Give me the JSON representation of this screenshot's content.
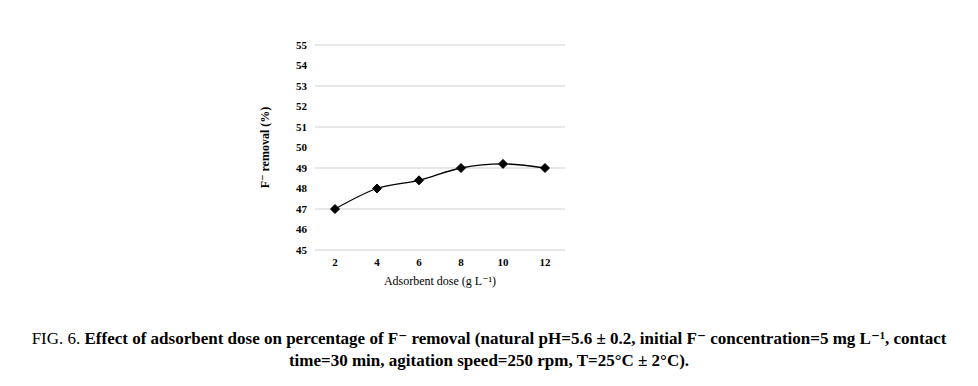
{
  "chart_data": {
    "type": "line",
    "title": "FIG. 6.",
    "subtitle": "Effect of adsorbent dose on percentage of F⁻ removal (natural pH=5.6 ± 0.2, initial F⁻ concentration=5 mg L⁻¹, contact time=30 min, agitation speed=250 rpm, T=25°C ± 2°C).",
    "xlabel": "Adsorbent dose (g L⁻¹)",
    "ylabel": "F⁻ removal (%)",
    "categories": [
      "2",
      "4",
      "6",
      "8",
      "10",
      "12"
    ],
    "values": [
      47,
      48,
      48.4,
      49,
      49.2,
      49
    ],
    "color": "#000000",
    "marker": "diamond",
    "line_style": "solid",
    "ylim": [
      45,
      55
    ],
    "yticks": [
      45,
      46,
      47,
      48,
      49,
      50,
      51,
      52,
      53,
      54,
      55
    ],
    "grid": true
  }
}
